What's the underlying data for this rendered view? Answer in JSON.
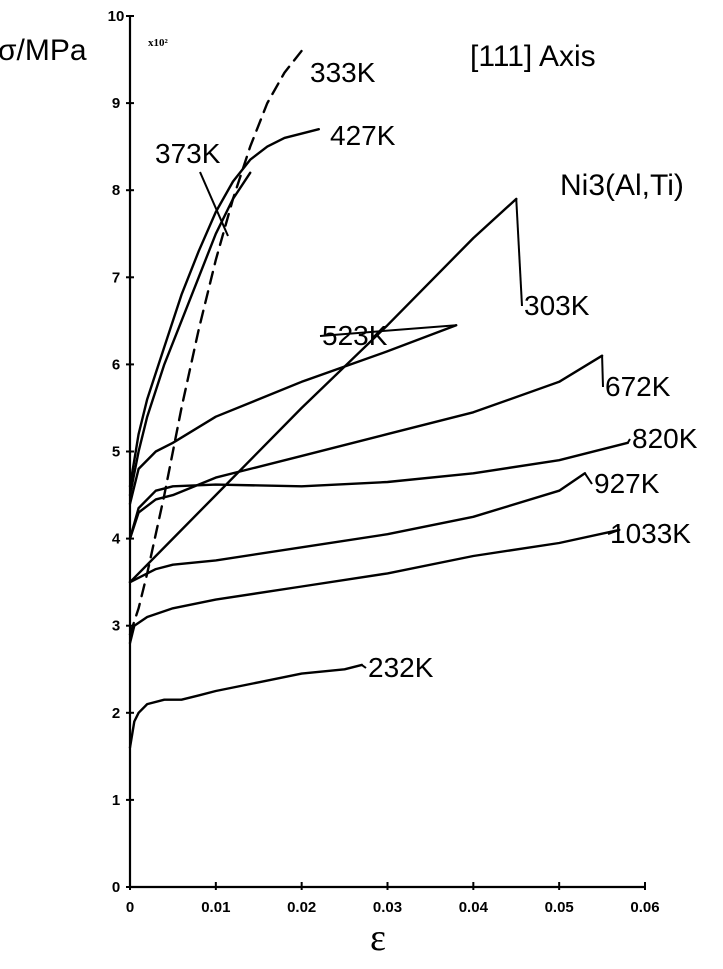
{
  "chart_data": {
    "type": "line",
    "title": "[111] Axis",
    "subtitle": "Ni3(Al,Ti)",
    "ylabel": "σ/MPa",
    "xlabel": "ε",
    "y_scale_note": "x10²",
    "xlim": [
      0,
      0.06
    ],
    "ylim": [
      0,
      10
    ],
    "x_ticks": [
      "0",
      "0.01",
      "0.02",
      "0.03",
      "0.04",
      "0.05",
      "0.06"
    ],
    "y_ticks": [
      "0",
      "1",
      "2",
      "3",
      "4",
      "5",
      "6",
      "7",
      "8",
      "9",
      "10"
    ],
    "grid": false,
    "legend": "inline labels",
    "series": [
      {
        "name": "333K",
        "style": "dashed",
        "x": [
          0.0,
          0.001,
          0.002,
          0.004,
          0.006,
          0.008,
          0.01,
          0.012,
          0.014,
          0.016,
          0.018,
          0.02
        ],
        "y": [
          2.9,
          3.2,
          3.6,
          4.5,
          5.5,
          6.4,
          7.2,
          7.9,
          8.5,
          9.0,
          9.35,
          9.6
        ]
      },
      {
        "name": "427K",
        "style": "solid",
        "x": [
          0.0,
          0.001,
          0.002,
          0.004,
          0.006,
          0.008,
          0.01,
          0.012,
          0.014,
          0.016,
          0.018,
          0.02,
          0.022
        ],
        "y": [
          4.6,
          5.2,
          5.6,
          6.2,
          6.8,
          7.3,
          7.75,
          8.1,
          8.35,
          8.5,
          8.6,
          8.65,
          8.7
        ]
      },
      {
        "name": "373K",
        "style": "solid",
        "x": [
          0.0,
          0.001,
          0.002,
          0.004,
          0.006,
          0.008,
          0.01,
          0.012,
          0.014
        ],
        "y": [
          4.5,
          5.0,
          5.4,
          6.0,
          6.5,
          7.0,
          7.5,
          7.9,
          8.2
        ]
      },
      {
        "name": "523K",
        "style": "solid",
        "x": [
          0.0,
          0.001,
          0.003,
          0.005,
          0.01,
          0.02,
          0.03,
          0.038
        ],
        "y": [
          4.4,
          4.8,
          5.0,
          5.1,
          5.4,
          5.8,
          6.15,
          6.45
        ]
      },
      {
        "name": "303K",
        "style": "solid",
        "x": [
          0.0,
          0.005,
          0.01,
          0.02,
          0.03,
          0.04,
          0.045
        ],
        "y": [
          3.5,
          4.0,
          4.5,
          5.5,
          6.45,
          7.45,
          7.9
        ]
      },
      {
        "name": "672K",
        "style": "solid",
        "x": [
          0.0,
          0.001,
          0.003,
          0.005,
          0.01,
          0.02,
          0.03,
          0.04,
          0.05,
          0.055
        ],
        "y": [
          4.0,
          4.3,
          4.45,
          4.5,
          4.7,
          4.95,
          5.2,
          5.45,
          5.8,
          6.1
        ]
      },
      {
        "name": "820K",
        "style": "solid",
        "x": [
          0.0,
          0.001,
          0.003,
          0.005,
          0.01,
          0.02,
          0.03,
          0.04,
          0.05,
          0.058
        ],
        "y": [
          4.0,
          4.35,
          4.55,
          4.6,
          4.62,
          4.6,
          4.65,
          4.75,
          4.9,
          5.1
        ]
      },
      {
        "name": "927K",
        "style": "solid",
        "x": [
          0.0,
          0.001,
          0.003,
          0.005,
          0.01,
          0.02,
          0.03,
          0.04,
          0.05,
          0.053
        ],
        "y": [
          3.5,
          3.55,
          3.65,
          3.7,
          3.75,
          3.9,
          4.05,
          4.25,
          4.55,
          4.75
        ]
      },
      {
        "name": "1033K",
        "style": "solid",
        "x": [
          0.0,
          0.0005,
          0.002,
          0.005,
          0.01,
          0.02,
          0.03,
          0.04,
          0.05,
          0.057
        ],
        "y": [
          2.8,
          3.0,
          3.1,
          3.2,
          3.3,
          3.45,
          3.6,
          3.8,
          3.95,
          4.1
        ]
      },
      {
        "name": "232K",
        "style": "solid",
        "x": [
          0.0,
          0.0005,
          0.001,
          0.002,
          0.004,
          0.006,
          0.008,
          0.01,
          0.015,
          0.02,
          0.025,
          0.027
        ],
        "y": [
          1.6,
          1.9,
          2.0,
          2.1,
          2.15,
          2.15,
          2.2,
          2.25,
          2.35,
          2.45,
          2.5,
          2.55
        ]
      }
    ]
  }
}
